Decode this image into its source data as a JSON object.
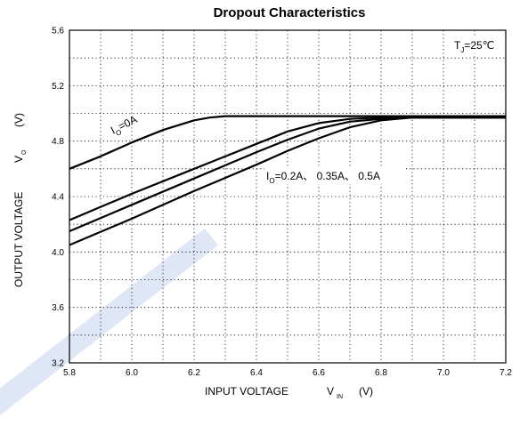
{
  "chart_data": {
    "type": "line",
    "title": "Dropout Characteristics",
    "xlabel": {
      "main": "INPUT VOLTAGE",
      "sym": "V",
      "sub": "IN",
      "unit": "(V)"
    },
    "ylabel": {
      "main": "OUTPUT VOLTAGE",
      "sym": "V",
      "sub": "O",
      "unit": "(V)"
    },
    "xlim": [
      5.8,
      7.2
    ],
    "ylim": [
      3.2,
      5.6
    ],
    "xticks": [
      "5.8",
      "6.0",
      "6.2",
      "6.4",
      "6.6",
      "6.8",
      "7.0",
      "7.2"
    ],
    "yticks": [
      "3.2",
      "3.6",
      "4.0",
      "4.4",
      "4.8",
      "5.2",
      "5.6"
    ],
    "grid": true,
    "annotations": [
      {
        "id": "tj",
        "prefix": "T",
        "sub": "J",
        "suffix": "=25℃"
      },
      {
        "id": "io0",
        "prefix": "I",
        "sub": "O",
        "suffix": "=0A"
      },
      {
        "id": "io1",
        "prefix": "I",
        "sub": "O",
        "suffix": "=0.2A、 0.35A、 0.5A"
      }
    ],
    "series": [
      {
        "x": [
          5.8,
          5.9,
          6.0,
          6.1,
          6.2,
          6.25,
          6.3,
          6.4,
          7.2
        ],
        "y": [
          4.6,
          4.69,
          4.79,
          4.88,
          4.95,
          4.97,
          4.98,
          4.98,
          4.98
        ]
      },
      {
        "x": [
          5.8,
          6.0,
          6.2,
          6.4,
          6.5,
          6.6,
          6.7,
          6.8,
          7.2
        ],
        "y": [
          4.23,
          4.42,
          4.6,
          4.78,
          4.87,
          4.93,
          4.96,
          4.97,
          4.97
        ]
      },
      {
        "x": [
          5.8,
          6.0,
          6.2,
          6.4,
          6.5,
          6.6,
          6.7,
          6.8,
          6.85,
          7.2
        ],
        "y": [
          4.15,
          4.34,
          4.53,
          4.72,
          4.81,
          4.89,
          4.94,
          4.96,
          4.97,
          4.97
        ]
      },
      {
        "x": [
          5.8,
          6.0,
          6.2,
          6.4,
          6.5,
          6.6,
          6.7,
          6.8,
          6.9,
          7.2
        ],
        "y": [
          4.05,
          4.24,
          4.44,
          4.63,
          4.73,
          4.82,
          4.9,
          4.95,
          4.97,
          4.97
        ]
      }
    ]
  }
}
